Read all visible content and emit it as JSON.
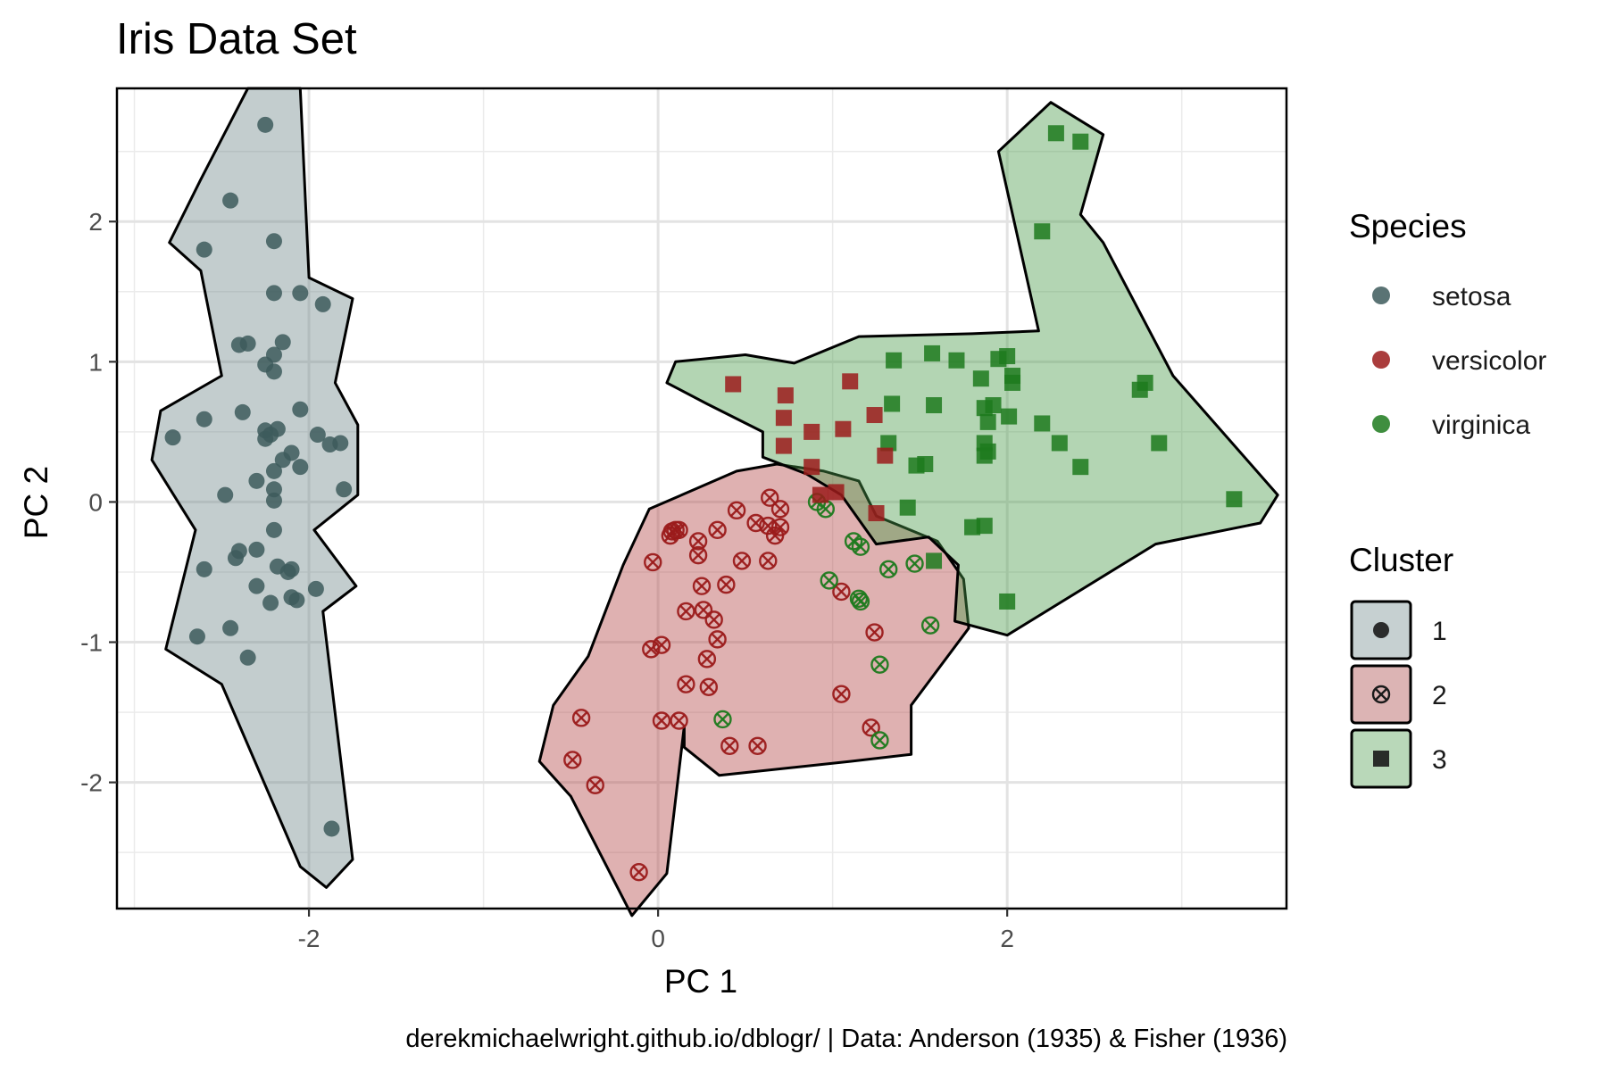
{
  "chart_data": {
    "type": "scatter",
    "title": "Iris Data Set",
    "xlabel": "PC 1",
    "ylabel": "PC 2",
    "caption": "derekmichaelwright.github.io/dblogr/ | Data: Anderson (1935) & Fisher (1936)",
    "xlim": [
      -3.1,
      3.6
    ],
    "ylim": [
      -2.9,
      2.95
    ],
    "x_ticks": [
      -2,
      0,
      2
    ],
    "y_ticks": [
      -2,
      -1,
      0,
      1,
      2
    ],
    "x_tick_labels": [
      "-2",
      "0",
      "2"
    ],
    "y_tick_labels": [
      "-2",
      "-1",
      "0",
      "1",
      "2"
    ],
    "grid": true,
    "legend_position": "right",
    "colors": {
      "setosa": "#3d5a5c",
      "versicolor": "#9b1b1b",
      "virginica": "#1d7a1d",
      "hull_1": "#6f878a",
      "hull_2": "#b24646",
      "hull_3": "#4a9a4a"
    },
    "legend_species": {
      "title": "Species",
      "items": [
        {
          "label": "setosa",
          "color": "#3d5a5c"
        },
        {
          "label": "versicolor",
          "color": "#9b1b1b"
        },
        {
          "label": "virginica",
          "color": "#1d7a1d"
        }
      ]
    },
    "legend_cluster": {
      "title": "Cluster",
      "items": [
        {
          "label": "1",
          "shape": "circle",
          "fill": "#c6d0d1"
        },
        {
          "label": "2",
          "shape": "circle-x",
          "fill": "#dcb4b4"
        },
        {
          "label": "3",
          "shape": "square",
          "fill": "#b9d8b9"
        }
      ]
    },
    "hulls": [
      {
        "cluster": "1",
        "points": [
          [
            -2.35,
            2.95
          ],
          [
            -2.05,
            2.95
          ],
          [
            -2.0,
            1.6
          ],
          [
            -1.75,
            1.45
          ],
          [
            -1.85,
            0.85
          ],
          [
            -1.72,
            0.55
          ],
          [
            -1.72,
            0.05
          ],
          [
            -1.97,
            -0.2
          ],
          [
            -1.73,
            -0.6
          ],
          [
            -1.92,
            -0.78
          ],
          [
            -1.75,
            -2.55
          ],
          [
            -1.9,
            -2.75
          ],
          [
            -2.05,
            -2.6
          ],
          [
            -2.5,
            -1.3
          ],
          [
            -2.82,
            -1.05
          ],
          [
            -2.75,
            -0.7
          ],
          [
            -2.65,
            -0.2
          ],
          [
            -2.9,
            0.3
          ],
          [
            -2.85,
            0.65
          ],
          [
            -2.5,
            0.9
          ],
          [
            -2.62,
            1.65
          ],
          [
            -2.8,
            1.85
          ],
          [
            -2.62,
            2.3
          ]
        ]
      },
      {
        "cluster": "2",
        "points": [
          [
            -0.05,
            -0.05
          ],
          [
            0.45,
            0.22
          ],
          [
            0.68,
            0.27
          ],
          [
            0.95,
            0.22
          ],
          [
            1.15,
            0.15
          ],
          [
            1.25,
            -0.1
          ],
          [
            1.6,
            -0.28
          ],
          [
            1.75,
            -0.55
          ],
          [
            1.78,
            -0.9
          ],
          [
            1.45,
            -1.45
          ],
          [
            1.45,
            -1.8
          ],
          [
            1.1,
            -1.85
          ],
          [
            0.35,
            -1.95
          ],
          [
            0.15,
            -1.75
          ],
          [
            0.15,
            -1.6
          ],
          [
            0.05,
            -2.65
          ],
          [
            -0.15,
            -2.95
          ],
          [
            -0.5,
            -2.1
          ],
          [
            -0.68,
            -1.85
          ],
          [
            -0.6,
            -1.45
          ],
          [
            -0.4,
            -1.1
          ],
          [
            -0.2,
            -0.45
          ]
        ]
      },
      {
        "cluster": "3",
        "points": [
          [
            2.25,
            2.85
          ],
          [
            2.55,
            2.62
          ],
          [
            2.42,
            2.05
          ],
          [
            2.55,
            1.85
          ],
          [
            2.95,
            0.9
          ],
          [
            3.55,
            0.05
          ],
          [
            3.45,
            -0.15
          ],
          [
            2.85,
            -0.3
          ],
          [
            2.0,
            -0.95
          ],
          [
            1.7,
            -0.85
          ],
          [
            1.72,
            -0.45
          ],
          [
            1.55,
            -0.25
          ],
          [
            1.25,
            -0.3
          ],
          [
            1.05,
            0.05
          ],
          [
            0.85,
            0.2
          ],
          [
            0.6,
            0.32
          ],
          [
            0.6,
            0.5
          ],
          [
            0.28,
            0.7
          ],
          [
            0.05,
            0.85
          ],
          [
            0.1,
            1.0
          ],
          [
            0.5,
            1.05
          ],
          [
            0.78,
            0.99
          ],
          [
            1.15,
            1.18
          ],
          [
            1.8,
            1.2
          ],
          [
            2.18,
            1.22
          ],
          [
            1.95,
            2.5
          ]
        ]
      }
    ],
    "series": [
      {
        "name": "setosa",
        "cluster": "1",
        "points": [
          [
            -2.25,
            2.69
          ],
          [
            -2.45,
            2.15
          ],
          [
            -2.6,
            1.8
          ],
          [
            -2.2,
            1.86
          ],
          [
            -2.2,
            1.49
          ],
          [
            -2.05,
            1.49
          ],
          [
            -1.92,
            1.41
          ],
          [
            -2.4,
            1.12
          ],
          [
            -2.35,
            1.13
          ],
          [
            -2.15,
            1.14
          ],
          [
            -2.25,
            0.98
          ],
          [
            -2.2,
            1.05
          ],
          [
            -2.2,
            0.93
          ],
          [
            -2.6,
            0.59
          ],
          [
            -2.38,
            0.64
          ],
          [
            -2.05,
            0.66
          ],
          [
            -2.25,
            0.45
          ],
          [
            -2.25,
            0.51
          ],
          [
            -2.18,
            0.52
          ],
          [
            -2.22,
            0.48
          ],
          [
            -2.78,
            0.46
          ],
          [
            -1.95,
            0.48
          ],
          [
            -1.88,
            0.41
          ],
          [
            -1.82,
            0.42
          ],
          [
            -2.15,
            0.3
          ],
          [
            -2.1,
            0.35
          ],
          [
            -2.05,
            0.25
          ],
          [
            -2.2,
            0.22
          ],
          [
            -2.2,
            0.09
          ],
          [
            -2.3,
            0.15
          ],
          [
            -1.8,
            0.09
          ],
          [
            -2.48,
            0.05
          ],
          [
            -2.2,
            0.01
          ],
          [
            -2.2,
            -0.2
          ],
          [
            -2.4,
            -0.35
          ],
          [
            -2.3,
            -0.34
          ],
          [
            -2.42,
            -0.4
          ],
          [
            -2.18,
            -0.46
          ],
          [
            -2.12,
            -0.5
          ],
          [
            -2.1,
            -0.48
          ],
          [
            -2.6,
            -0.48
          ],
          [
            -2.3,
            -0.6
          ],
          [
            -2.1,
            -0.68
          ],
          [
            -2.07,
            -0.7
          ],
          [
            -1.96,
            -0.62
          ],
          [
            -2.22,
            -0.72
          ],
          [
            -2.45,
            -0.9
          ],
          [
            -2.64,
            -0.96
          ],
          [
            -2.35,
            -1.11
          ],
          [
            -1.87,
            -2.33
          ]
        ]
      },
      {
        "name": "versicolor",
        "cluster": "2",
        "points": [
          [
            0.64,
            0.03
          ],
          [
            0.7,
            -0.05
          ],
          [
            0.45,
            -0.06
          ],
          [
            0.63,
            -0.17
          ],
          [
            0.56,
            -0.15
          ],
          [
            0.7,
            -0.18
          ],
          [
            0.67,
            -0.24
          ],
          [
            0.1,
            -0.2
          ],
          [
            0.12,
            -0.2
          ],
          [
            0.08,
            -0.21
          ],
          [
            0.07,
            -0.24
          ],
          [
            0.34,
            -0.2
          ],
          [
            0.23,
            -0.28
          ],
          [
            0.23,
            -0.38
          ],
          [
            -0.03,
            -0.43
          ],
          [
            0.48,
            -0.42
          ],
          [
            0.63,
            -0.42
          ],
          [
            0.25,
            -0.6
          ],
          [
            0.39,
            -0.59
          ],
          [
            0.26,
            -0.77
          ],
          [
            0.16,
            -0.78
          ],
          [
            0.32,
            -0.84
          ],
          [
            0.34,
            -0.98
          ],
          [
            0.28,
            -1.12
          ],
          [
            0.02,
            -1.02
          ],
          [
            -0.04,
            -1.05
          ],
          [
            0.16,
            -1.3
          ],
          [
            0.29,
            -1.32
          ],
          [
            1.05,
            -0.64
          ],
          [
            1.24,
            -0.93
          ],
          [
            1.05,
            -1.37
          ],
          [
            1.22,
            -1.61
          ],
          [
            0.02,
            -1.56
          ],
          [
            0.12,
            -1.56
          ],
          [
            0.41,
            -1.74
          ],
          [
            0.57,
            -1.74
          ],
          [
            -0.44,
            -1.54
          ],
          [
            -0.49,
            -1.84
          ],
          [
            -0.36,
            -2.02
          ],
          [
            -0.11,
            -2.64
          ]
        ]
      },
      {
        "name": "virginica",
        "cluster": "2",
        "points": [
          [
            0.91,
            0.0
          ],
          [
            0.96,
            -0.05
          ],
          [
            1.12,
            -0.28
          ],
          [
            1.16,
            -0.32
          ],
          [
            1.32,
            -0.48
          ],
          [
            1.47,
            -0.44
          ],
          [
            0.98,
            -0.56
          ],
          [
            1.15,
            -0.69
          ],
          [
            1.16,
            -0.71
          ],
          [
            1.56,
            -0.88
          ],
          [
            1.27,
            -1.16
          ],
          [
            0.37,
            -1.55
          ],
          [
            1.27,
            -1.7
          ]
        ]
      },
      {
        "name": "virginica",
        "cluster": "3",
        "points": [
          [
            2.28,
            2.63
          ],
          [
            2.42,
            2.57
          ],
          [
            2.2,
            1.93
          ],
          [
            1.35,
            1.01
          ],
          [
            1.57,
            1.06
          ],
          [
            1.71,
            1.01
          ],
          [
            1.95,
            1.02
          ],
          [
            2.0,
            1.04
          ],
          [
            1.85,
            0.88
          ],
          [
            2.03,
            0.9
          ],
          [
            2.03,
            0.85
          ],
          [
            2.76,
            0.8
          ],
          [
            2.79,
            0.85
          ],
          [
            1.34,
            0.7
          ],
          [
            1.58,
            0.69
          ],
          [
            1.87,
            0.67
          ],
          [
            1.92,
            0.69
          ],
          [
            1.89,
            0.57
          ],
          [
            2.01,
            0.61
          ],
          [
            2.2,
            0.56
          ],
          [
            2.87,
            0.42
          ],
          [
            1.32,
            0.42
          ],
          [
            1.87,
            0.42
          ],
          [
            1.89,
            0.36
          ],
          [
            2.3,
            0.42
          ],
          [
            1.87,
            0.33
          ],
          [
            1.48,
            0.26
          ],
          [
            1.53,
            0.27
          ],
          [
            2.42,
            0.25
          ],
          [
            3.3,
            0.02
          ],
          [
            1.43,
            -0.04
          ],
          [
            1.8,
            -0.18
          ],
          [
            1.87,
            -0.17
          ],
          [
            1.58,
            -0.42
          ],
          [
            2.0,
            -0.71
          ]
        ]
      },
      {
        "name": "versicolor",
        "cluster": "3",
        "points": [
          [
            0.43,
            0.84
          ],
          [
            0.73,
            0.76
          ],
          [
            1.1,
            0.86
          ],
          [
            0.72,
            0.6
          ],
          [
            0.88,
            0.5
          ],
          [
            1.06,
            0.52
          ],
          [
            1.24,
            0.62
          ],
          [
            0.72,
            0.4
          ],
          [
            0.88,
            0.25
          ],
          [
            1.3,
            0.33
          ],
          [
            0.93,
            0.05
          ],
          [
            1.02,
            0.07
          ],
          [
            1.25,
            -0.08
          ]
        ]
      }
    ]
  }
}
